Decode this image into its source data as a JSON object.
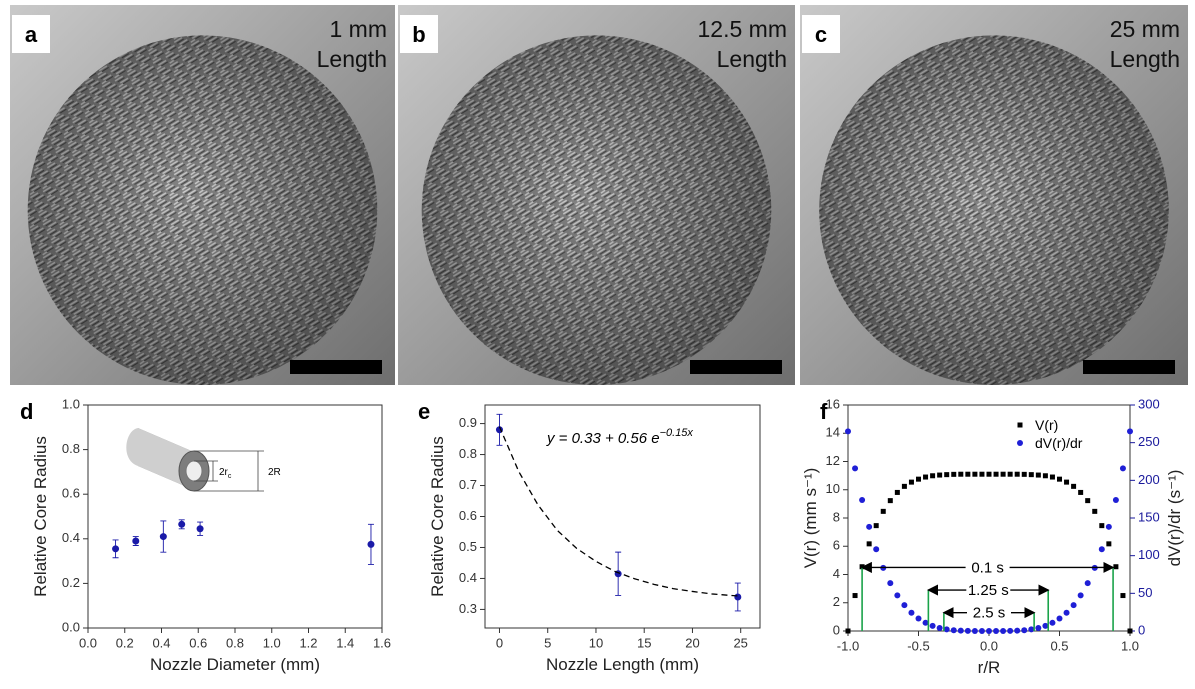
{
  "images": [
    {
      "label": "a",
      "caption": [
        "1 mm",
        "Length"
      ]
    },
    {
      "label": "b",
      "caption": [
        "12.5 mm",
        "Length"
      ]
    },
    {
      "label": "c",
      "caption": [
        "25 mm",
        "Length"
      ]
    }
  ],
  "chart_data": [
    {
      "type": "scatter",
      "panel": "d",
      "x_label": "Nozzle Diameter (mm)",
      "y_label": "Relative Core Radius",
      "xlim": [
        0,
        1.6
      ],
      "xticks": [
        {
          "value": 0,
          "label": "0.0"
        },
        0.2,
        0.4,
        0.6,
        0.8,
        {
          "value": 1,
          "label": "1.0"
        },
        1.2,
        1.4,
        1.6
      ],
      "ylim": [
        0,
        1
      ],
      "yticks": [
        {
          "value": 0,
          "label": "0.0"
        },
        0.2,
        0.4,
        0.6,
        0.8,
        {
          "value": 1,
          "label": "1.0"
        }
      ],
      "series": [
        {
          "color": "#1a1aa8",
          "x": [
            0.15,
            0.26,
            0.41,
            0.51,
            0.61,
            1.54
          ],
          "values": [
            0.355,
            0.39,
            0.41,
            0.465,
            0.445,
            0.375
          ],
          "errors": [
            0.04,
            0.02,
            0.07,
            0.02,
            0.03,
            0.09
          ]
        }
      ],
      "inset": {
        "inner": "2r",
        "inner_sub": "c",
        "outer": "2R"
      }
    },
    {
      "type": "scatter",
      "panel": "e",
      "x_label": "Nozzle Length (mm)",
      "y_label": "Relative Core Radius",
      "xlim": [
        -1.5,
        27
      ],
      "xticks": [
        0,
        5,
        10,
        15,
        20,
        25
      ],
      "ylim": [
        0.24,
        0.96
      ],
      "yticks": [
        0.3,
        0.4,
        0.5,
        0.6,
        0.7,
        0.8,
        0.9
      ],
      "series": [
        {
          "color": "#1a1aa8",
          "x": [
            0,
            12.3,
            24.7
          ],
          "values": [
            0.88,
            0.415,
            0.34
          ],
          "errors": [
            0.05,
            0.07,
            0.045
          ]
        }
      ],
      "fit": {
        "x": [
          0,
          2,
          4,
          6,
          8,
          10,
          12,
          14,
          16,
          18,
          20,
          22,
          24,
          25
        ],
        "values": [
          0.89,
          0.745,
          0.637,
          0.555,
          0.497,
          0.455,
          0.422,
          0.399,
          0.381,
          0.367,
          0.358,
          0.35,
          0.345,
          0.343
        ]
      },
      "equation": {
        "main": "y = 0.33 + 0.56 e",
        "exponent": "−0.15x"
      }
    },
    {
      "type": "profile",
      "panel": "f",
      "x_label": "r/R",
      "y_label": "V(r) (mm s⁻¹)",
      "y2_label": "dV(r)/dr (s⁻¹)",
      "xlim": [
        -1,
        1
      ],
      "xticks": [
        {
          "value": -1,
          "label": "-1.0"
        },
        -0.5,
        {
          "value": 0,
          "label": "0.0"
        },
        0.5,
        {
          "value": 1,
          "label": "1.0"
        }
      ],
      "ylim": [
        0,
        16
      ],
      "yticks": [
        0,
        2,
        4,
        6,
        8,
        10,
        12,
        14,
        16
      ],
      "y2lim": [
        0,
        300
      ],
      "y2ticks": [
        0,
        50,
        100,
        150,
        200,
        250,
        300
      ],
      "x": [
        -1,
        -0.95,
        -0.9,
        -0.85,
        -0.8,
        -0.75,
        -0.7,
        -0.65,
        -0.6,
        -0.55,
        -0.5,
        -0.45,
        -0.4,
        -0.35,
        -0.3,
        -0.25,
        -0.2,
        -0.15,
        -0.1,
        -0.05,
        0,
        0.05,
        0.1,
        0.15,
        0.2,
        0.25,
        0.3,
        0.35,
        0.4,
        0.45,
        0.5,
        0.55,
        0.6,
        0.65,
        0.7,
        0.75,
        0.8,
        0.85,
        0.9,
        0.95,
        1
      ],
      "series": [
        {
          "name": "V(r)",
          "color": "#000000",
          "values": [
            0,
            2.51,
            4.55,
            6.17,
            7.46,
            8.47,
            9.23,
            9.81,
            10.24,
            10.54,
            10.75,
            10.9,
            10.99,
            11.04,
            11.07,
            11.09,
            11.1,
            11.1,
            11.1,
            11.1,
            11.1,
            11.1,
            11.1,
            11.1,
            11.1,
            11.09,
            11.07,
            11.04,
            10.99,
            10.9,
            10.75,
            10.54,
            10.24,
            9.81,
            9.23,
            8.47,
            7.46,
            6.17,
            4.55,
            2.51,
            0
          ]
        },
        {
          "name": "dV(r)/dr",
          "color": "#1f1fd6",
          "axis": "y2",
          "values": [
            265,
            215.8,
            173.9,
            138.3,
            108.5,
            83.8,
            63.6,
            47.3,
            34.34,
            24.25,
            16.56,
            10.87,
            6.78,
            3.98,
            2.15,
            1.04,
            0.42,
            0.13,
            0.03,
            0,
            0,
            0,
            0.03,
            0.13,
            0.42,
            1.04,
            2.15,
            3.98,
            6.78,
            10.87,
            16.56,
            24.25,
            34.34,
            47.3,
            63.6,
            83.8,
            108.5,
            138.3,
            173.9,
            215.8,
            265
          ]
        }
      ],
      "annotations": [
        {
          "text": "0.1 s",
          "x": [
            -0.9,
            0.88
          ],
          "y": 4.5
        },
        {
          "text": "1.25 s",
          "x": [
            -0.43,
            0.42
          ],
          "y": 2.9
        },
        {
          "text": "2.5 s",
          "x": [
            -0.32,
            0.32
          ],
          "y": 1.3
        }
      ]
    }
  ]
}
